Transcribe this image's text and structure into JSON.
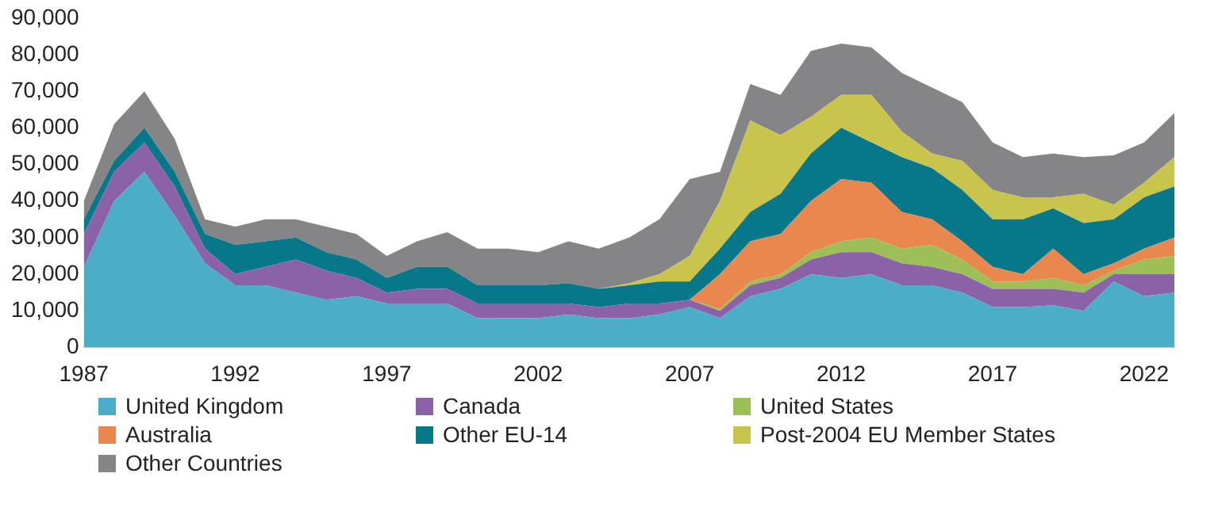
{
  "chart_data": {
    "type": "area",
    "stacked": true,
    "x": [
      1987,
      1988,
      1989,
      1990,
      1991,
      1992,
      1993,
      1994,
      1995,
      1996,
      1997,
      1998,
      1999,
      2000,
      2001,
      2002,
      2003,
      2004,
      2005,
      2006,
      2007,
      2008,
      2009,
      2010,
      2011,
      2012,
      2013,
      2014,
      2015,
      2016,
      2017,
      2018,
      2019,
      2020,
      2021,
      2022,
      2023
    ],
    "xlim": [
      1987,
      2023
    ],
    "xticks": [
      1987,
      1992,
      1997,
      2002,
      2007,
      2012,
      2017,
      2022
    ],
    "ylim": [
      0,
      90000
    ],
    "yticks": [
      0,
      {
        "value": 10000,
        "label": "10,000"
      },
      {
        "value": 20000,
        "label": "20,000"
      },
      {
        "value": 30000,
        "label": "30,000"
      },
      {
        "value": 40000,
        "label": "40,000"
      },
      {
        "value": 50000,
        "label": "50,000"
      },
      {
        "value": 60000,
        "label": "60,000"
      },
      {
        "value": 70000,
        "label": "70,000"
      },
      {
        "value": 80000,
        "label": "80,000"
      },
      {
        "value": 90000,
        "label": "90,000"
      }
    ],
    "grid": false,
    "legend": "bottom",
    "series": [
      {
        "name": "United Kingdom",
        "color": "#4badc8",
        "values": [
          22000,
          40000,
          48000,
          36000,
          23000,
          17000,
          17000,
          15000,
          13000,
          14000,
          12000,
          12000,
          12000,
          8000,
          8000,
          8000,
          9000,
          8000,
          8000,
          9000,
          11000,
          8000,
          14000,
          16000,
          20000,
          19000,
          20000,
          17000,
          17000,
          15000,
          11000,
          11000,
          11500,
          10000,
          18000,
          14000,
          15000
        ]
      },
      {
        "name": "Canada",
        "color": "#8b62a8",
        "values": [
          9000,
          8000,
          8000,
          8000,
          4000,
          3000,
          5000,
          9000,
          8000,
          5000,
          3000,
          4000,
          4000,
          4000,
          4000,
          4000,
          3000,
          3000,
          4000,
          3000,
          2000,
          2000,
          3000,
          3000,
          4000,
          7000,
          6000,
          6000,
          5000,
          5000,
          5000,
          5000,
          4500,
          5000,
          2000,
          6000,
          5000
        ]
      },
      {
        "name": "United States",
        "color": "#9dbf57",
        "values": [
          0,
          0,
          0,
          0,
          0,
          0,
          0,
          0,
          0,
          0,
          0,
          0,
          0,
          0,
          0,
          0,
          0,
          0,
          0,
          0,
          0,
          500,
          1000,
          1000,
          2000,
          3000,
          4000,
          4000,
          6000,
          4000,
          2000,
          2000,
          3000,
          2000,
          1000,
          4000,
          5000
        ]
      },
      {
        "name": "Australia",
        "color": "#e8874e",
        "values": [
          0,
          0,
          0,
          0,
          0,
          0,
          0,
          0,
          0,
          0,
          0,
          0,
          0,
          0,
          0,
          0,
          0,
          0,
          0,
          0,
          0,
          9500,
          11000,
          11000,
          14000,
          17000,
          15000,
          10000,
          7000,
          5000,
          4000,
          2000,
          8000,
          3000,
          2000,
          3000,
          5000
        ]
      },
      {
        "name": "Other EU-14",
        "color": "#07778a",
        "values": [
          4000,
          3000,
          4000,
          4000,
          4000,
          8000,
          7000,
          6000,
          5000,
          5000,
          4000,
          6000,
          6000,
          5000,
          5000,
          5000,
          5500,
          5000,
          5000,
          6000,
          5000,
          7000,
          8000,
          11000,
          13000,
          14000,
          11000,
          15000,
          14000,
          14000,
          13000,
          15000,
          11000,
          14000,
          12000,
          14000,
          14000
        ]
      },
      {
        "name": "Post-2004 EU Member States",
        "color": "#c9c44c",
        "values": [
          0,
          0,
          0,
          0,
          0,
          0,
          0,
          0,
          0,
          0,
          0,
          0,
          0,
          0,
          0,
          0,
          0,
          0,
          500,
          2000,
          7000,
          13000,
          25000,
          16000,
          10000,
          9000,
          13000,
          7000,
          4000,
          8000,
          8000,
          6000,
          3000,
          8000,
          4000,
          4000,
          8000
        ]
      },
      {
        "name": "Other Countries",
        "color": "#858487",
        "values": [
          5000,
          10000,
          10000,
          9000,
          4000,
          5000,
          6000,
          5000,
          7000,
          7000,
          6000,
          7000,
          9500,
          10000,
          10000,
          9000,
          11500,
          11000,
          12500,
          15000,
          21000,
          8000,
          10000,
          11000,
          18000,
          14000,
          13000,
          16000,
          18000,
          16000,
          13000,
          11000,
          12000,
          10000,
          13500,
          11000,
          12000
        ]
      }
    ]
  }
}
